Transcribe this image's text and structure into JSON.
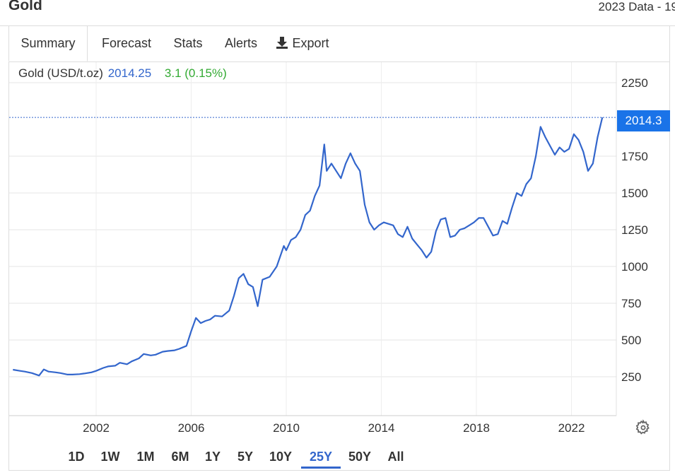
{
  "header": {
    "title": "Gold",
    "data_range": "2023 Data - 19"
  },
  "tabs": [
    {
      "label": "Summary",
      "active": true
    },
    {
      "label": "Forecast",
      "active": false
    },
    {
      "label": "Stats",
      "active": false
    },
    {
      "label": "Alerts",
      "active": false
    },
    {
      "label": "Export",
      "active": false,
      "icon": "download-icon"
    }
  ],
  "legend": {
    "name": "Gold (USD/t.oz)",
    "price": "2014.25",
    "change": "3.1 (0.15%)"
  },
  "current_price_tag": "2014.3",
  "colors": {
    "line": "#3366cc",
    "price_tag": "#1a73e8",
    "change_positive": "#33aa33",
    "active_range": "#3366cc"
  },
  "ranges": [
    {
      "label": "1D",
      "active": false
    },
    {
      "label": "1W",
      "active": false
    },
    {
      "label": "1M",
      "active": false
    },
    {
      "label": "6M",
      "active": false
    },
    {
      "label": "1Y",
      "active": false
    },
    {
      "label": "5Y",
      "active": false
    },
    {
      "label": "10Y",
      "active": false
    },
    {
      "label": "25Y",
      "active": true
    },
    {
      "label": "50Y",
      "active": false
    },
    {
      "label": "All",
      "active": false
    }
  ],
  "chart_data": {
    "type": "line",
    "title": "",
    "xlabel": "",
    "ylabel": "",
    "xlim": [
      1998.5,
      2023.4
    ],
    "ylim": [
      0,
      2350
    ],
    "x_ticks": [
      2002,
      2006,
      2010,
      2014,
      2018,
      2022
    ],
    "y_ticks": [
      250,
      500,
      750,
      1000,
      1250,
      1500,
      1750,
      2250
    ],
    "grid": true,
    "legend_position": "top-left",
    "y_axis_side": "right",
    "series": [
      {
        "name": "Gold (USD/t.oz)",
        "x": [
          1998.5,
          1998.8,
          1999.0,
          1999.3,
          1999.6,
          1999.8,
          2000.0,
          2000.3,
          2000.5,
          2000.8,
          2001.0,
          2001.3,
          2001.5,
          2001.8,
          2002.0,
          2002.3,
          2002.5,
          2002.8,
          2003.0,
          2003.3,
          2003.5,
          2003.8,
          2004.0,
          2004.3,
          2004.5,
          2004.8,
          2005.0,
          2005.3,
          2005.5,
          2005.8,
          2006.0,
          2006.2,
          2006.4,
          2006.6,
          2006.8,
          2007.0,
          2007.3,
          2007.6,
          2007.8,
          2008.0,
          2008.2,
          2008.4,
          2008.6,
          2008.8,
          2009.0,
          2009.3,
          2009.6,
          2009.9,
          2010.0,
          2010.2,
          2010.4,
          2010.6,
          2010.8,
          2011.0,
          2011.2,
          2011.4,
          2011.6,
          2011.7,
          2011.9,
          2012.1,
          2012.3,
          2012.5,
          2012.7,
          2012.9,
          2013.1,
          2013.3,
          2013.5,
          2013.7,
          2013.9,
          2014.1,
          2014.3,
          2014.5,
          2014.7,
          2014.9,
          2015.1,
          2015.3,
          2015.5,
          2015.7,
          2015.9,
          2016.1,
          2016.3,
          2016.5,
          2016.7,
          2016.9,
          2017.1,
          2017.3,
          2017.5,
          2017.7,
          2017.9,
          2018.1,
          2018.3,
          2018.5,
          2018.7,
          2018.9,
          2019.1,
          2019.3,
          2019.5,
          2019.7,
          2019.9,
          2020.1,
          2020.3,
          2020.5,
          2020.7,
          2020.9,
          2021.1,
          2021.3,
          2021.5,
          2021.7,
          2021.9,
          2022.1,
          2022.3,
          2022.5,
          2022.7,
          2022.9,
          2023.1,
          2023.3
        ],
        "values": [
          298,
          290,
          285,
          275,
          258,
          300,
          285,
          280,
          275,
          265,
          265,
          268,
          272,
          280,
          290,
          310,
          320,
          325,
          345,
          335,
          355,
          375,
          405,
          395,
          400,
          420,
          425,
          430,
          440,
          460,
          560,
          650,
          615,
          630,
          640,
          665,
          660,
          700,
          800,
          920,
          950,
          880,
          860,
          730,
          910,
          930,
          1000,
          1140,
          1110,
          1180,
          1200,
          1250,
          1350,
          1380,
          1480,
          1550,
          1830,
          1650,
          1700,
          1650,
          1600,
          1700,
          1770,
          1700,
          1650,
          1420,
          1300,
          1250,
          1280,
          1300,
          1290,
          1280,
          1220,
          1200,
          1270,
          1190,
          1150,
          1110,
          1060,
          1100,
          1240,
          1320,
          1330,
          1200,
          1210,
          1250,
          1260,
          1280,
          1300,
          1330,
          1330,
          1270,
          1210,
          1220,
          1310,
          1290,
          1400,
          1500,
          1480,
          1560,
          1600,
          1750,
          1950,
          1880,
          1820,
          1760,
          1810,
          1780,
          1800,
          1900,
          1860,
          1780,
          1650,
          1700,
          1880,
          2014
        ]
      }
    ]
  }
}
